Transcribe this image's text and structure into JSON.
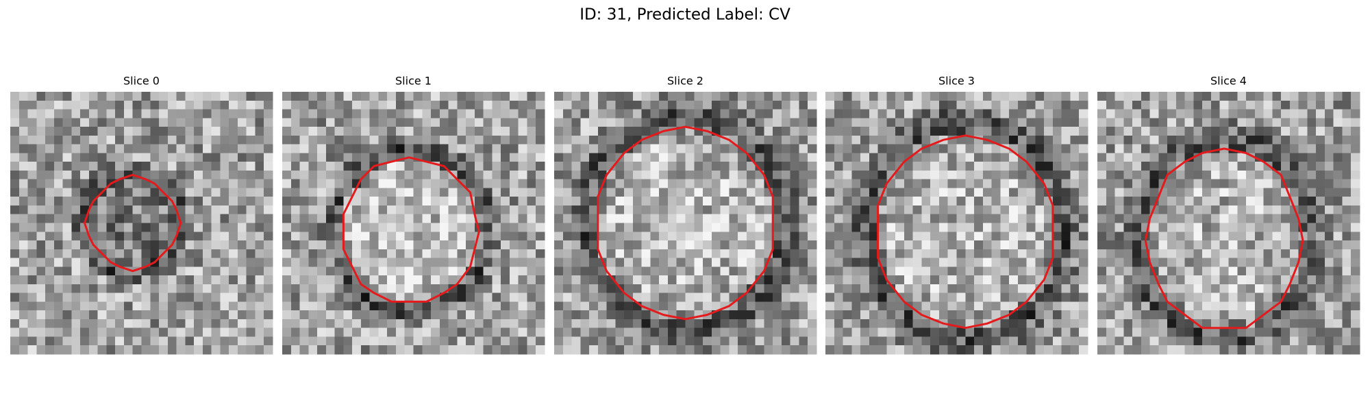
{
  "title": "ID: 31, Predicted Label: CV",
  "panels": [
    {
      "title": "Slice 0"
    },
    {
      "title": "Slice 1"
    },
    {
      "title": "Slice 2"
    },
    {
      "title": "Slice 3"
    },
    {
      "title": "Slice 4"
    }
  ]
}
